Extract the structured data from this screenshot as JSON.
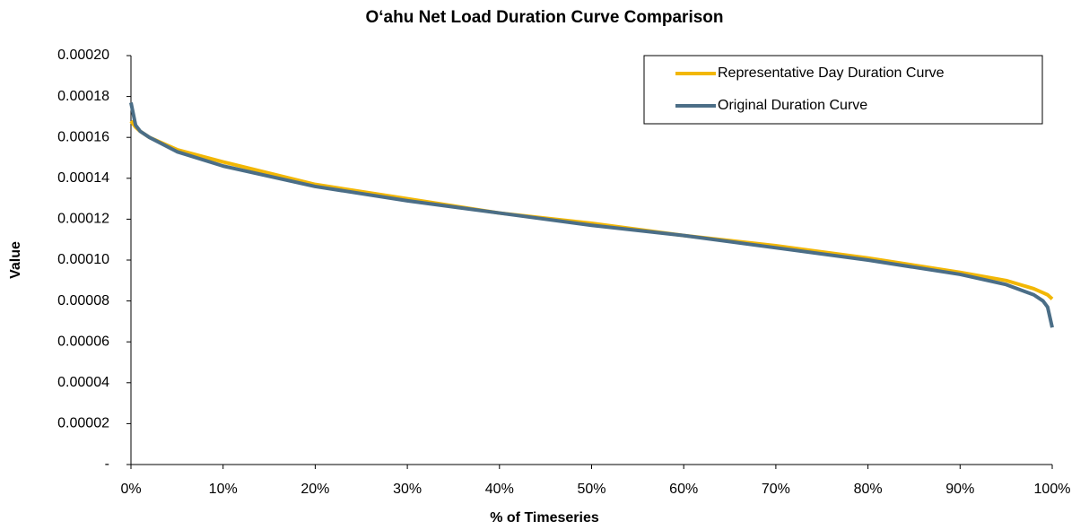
{
  "chart_data": {
    "type": "line",
    "title": "O‘ahu Net Load Duration Curve Comparison",
    "x_label": "% of Timeseries",
    "y_label": "Value",
    "x": [
      0,
      0.5,
      1,
      2,
      5,
      10,
      20,
      30,
      40,
      50,
      60,
      70,
      80,
      90,
      95,
      98,
      99,
      99.5,
      100
    ],
    "series": [
      {
        "name": "Representative Day Duration Curve",
        "color": "#f2b705",
        "values": [
          0.000168,
          0.000165,
          0.000163,
          0.00016,
          0.000154,
          0.000148,
          0.000137,
          0.00013,
          0.000123,
          0.000118,
          0.000112,
          0.000107,
          0.000101,
          9.4e-05,
          9e-05,
          8.6e-05,
          8.4e-05,
          8.3e-05,
          8.1e-05
        ]
      },
      {
        "name": "Original Duration Curve",
        "color": "#4b6e87",
        "values": [
          0.000177,
          0.000166,
          0.000163,
          0.00016,
          0.000153,
          0.000146,
          0.000136,
          0.000129,
          0.000123,
          0.000117,
          0.000112,
          0.000106,
          0.0001,
          9.3e-05,
          8.8e-05,
          8.3e-05,
          8e-05,
          7.7e-05,
          6.7e-05
        ]
      }
    ],
    "xlim": [
      0,
      100
    ],
    "ylim": [
      0,
      0.0002
    ],
    "xticks": [
      {
        "value": 0,
        "label": "0%"
      },
      {
        "value": 10,
        "label": "10%"
      },
      {
        "value": 20,
        "label": "20%"
      },
      {
        "value": 30,
        "label": "30%"
      },
      {
        "value": 40,
        "label": "40%"
      },
      {
        "value": 50,
        "label": "50%"
      },
      {
        "value": 60,
        "label": "60%"
      },
      {
        "value": 70,
        "label": "70%"
      },
      {
        "value": 80,
        "label": "80%"
      },
      {
        "value": 90,
        "label": "90%"
      },
      {
        "value": 100,
        "label": "100%"
      }
    ],
    "yticks": [
      {
        "value": 0,
        "label": "-"
      },
      {
        "value": 2e-05,
        "label": "0.00002"
      },
      {
        "value": 4e-05,
        "label": "0.00004"
      },
      {
        "value": 6e-05,
        "label": "0.00006"
      },
      {
        "value": 8e-05,
        "label": "0.00008"
      },
      {
        "value": 0.0001,
        "label": "0.00010"
      },
      {
        "value": 0.00012,
        "label": "0.00012"
      },
      {
        "value": 0.00014,
        "label": "0.00014"
      },
      {
        "value": 0.00016,
        "label": "0.00016"
      },
      {
        "value": 0.00018,
        "label": "0.00018"
      },
      {
        "value": 0.0002,
        "label": "0.00020"
      }
    ],
    "grid": false,
    "legend": "upper right"
  }
}
